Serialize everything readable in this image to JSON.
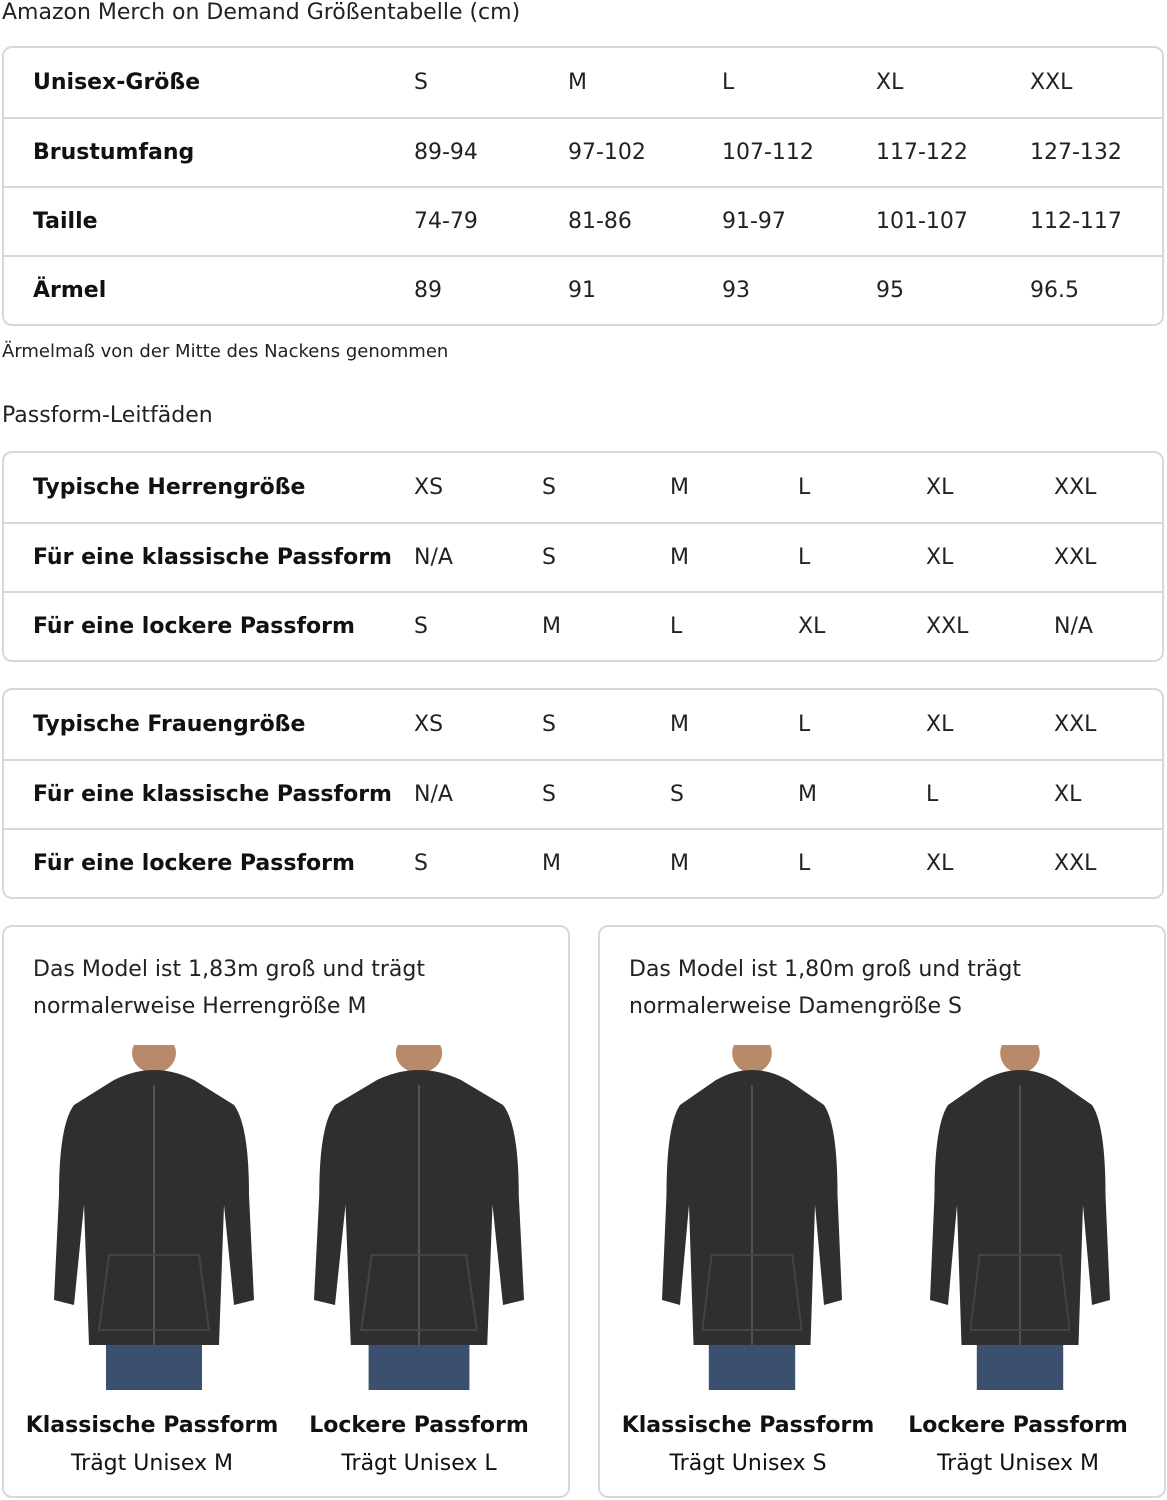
{
  "title": "Amazon Merch on Demand Größentabelle (cm)",
  "size_table": {
    "rows": [
      {
        "label": "Unisex-Größe",
        "values": [
          "S",
          "M",
          "L",
          "XL",
          "XXL"
        ]
      },
      {
        "label": "Brustumfang",
        "values": [
          "89-94",
          "97-102",
          "107-112",
          "117-122",
          "127-132"
        ]
      },
      {
        "label": "Taille",
        "values": [
          "74-79",
          "81-86",
          "91-97",
          "101-107",
          "112-117"
        ]
      },
      {
        "label": "Ärmel",
        "values": [
          "89",
          "91",
          "93",
          "95",
          "96.5"
        ]
      }
    ]
  },
  "sleeve_note": "Ärmelmaß von der Mitte des Nackens genommen",
  "fit_heading": "Passform-Leitfäden",
  "men_table": {
    "rows": [
      {
        "label": "Typische Herrengröße",
        "values": [
          "XS",
          "S",
          "M",
          "L",
          "XL",
          "XXL"
        ]
      },
      {
        "label": "Für eine klassische Passform",
        "values": [
          "N/A",
          "S",
          "M",
          "L",
          "XL",
          "XXL"
        ]
      },
      {
        "label": "Für eine lockere Passform",
        "values": [
          "S",
          "M",
          "L",
          "XL",
          "XXL",
          "N/A"
        ]
      }
    ]
  },
  "women_table": {
    "rows": [
      {
        "label": "Typische Frauengröße",
        "values": [
          "XS",
          "S",
          "M",
          "L",
          "XL",
          "XXL"
        ]
      },
      {
        "label": "Für eine klassische Passform",
        "values": [
          "N/A",
          "S",
          "S",
          "M",
          "L",
          "XL"
        ]
      },
      {
        "label": "Für eine lockere Passform",
        "values": [
          "S",
          "M",
          "M",
          "L",
          "XL",
          "XXL"
        ]
      }
    ]
  },
  "panels": [
    {
      "text": "Das Model ist 1,83m groß und trägt normalerweise Herrengröße M",
      "models": [
        {
          "fit": "Klassische Passform",
          "wears": "Trägt Unisex M"
        },
        {
          "fit": "Lockere Passform",
          "wears": "Trägt Unisex L"
        }
      ]
    },
    {
      "text": "Das Model ist 1,80m groß und trägt normalerweise Damengröße S",
      "models": [
        {
          "fit": "Klassische Passform",
          "wears": "Trägt Unisex S"
        },
        {
          "fit": "Lockere Passform",
          "wears": "Trägt Unisex M"
        }
      ]
    }
  ],
  "colors": {
    "border": "#d5d9d9",
    "hoodie": "#2f2f31",
    "jeans": "#3b4f6e"
  }
}
